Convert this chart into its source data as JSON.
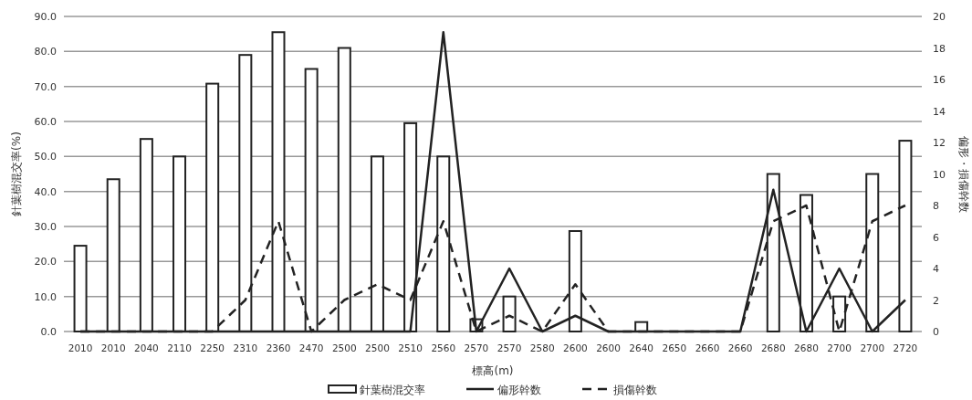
{
  "chart_data": {
    "type": "bar",
    "xlabel": "標高(m)",
    "ylabel": "針葉樹混交率(%)",
    "y2label": "偏形・損傷幹数",
    "categories": [
      "2010",
      "2010",
      "2040",
      "2110",
      "2250",
      "2310",
      "2360",
      "2470",
      "2500",
      "2500",
      "2510",
      "2560",
      "2570",
      "2570",
      "2580",
      "2600",
      "2600",
      "2640",
      "2650",
      "2660",
      "2660",
      "2680",
      "2680",
      "2700",
      "2700",
      "2720"
    ],
    "series": [
      {
        "name": "針葉樹混交率",
        "color": "#ffffff",
        "values": [
          24.5,
          43.5,
          55,
          50,
          70.8,
          79,
          85.5,
          75,
          81,
          50,
          59.5,
          50,
          3.5,
          10,
          0,
          28.7,
          0,
          2.7,
          0,
          0,
          0,
          45,
          39,
          10,
          45,
          54.5
        ]
      },
      {
        "name": "偏形幹数",
        "type": "line",
        "axis": "y2",
        "color": "#222222",
        "line_style": "solid",
        "values": [
          0,
          0,
          0,
          0,
          0,
          0,
          0,
          0,
          0,
          0,
          0,
          19,
          0,
          4,
          0,
          1,
          0,
          0,
          0,
          0,
          0,
          9,
          0,
          4,
          0,
          2
        ]
      },
      {
        "name": "損傷幹数",
        "type": "line",
        "axis": "y2",
        "color": "#222222",
        "line_style": "dashed",
        "values": [
          0,
          0,
          0,
          0,
          0,
          2,
          7,
          0,
          2,
          3,
          2,
          7,
          0,
          1,
          0,
          3,
          0,
          0,
          0,
          0,
          0,
          7,
          8,
          0,
          7,
          8
        ]
      }
    ],
    "ylim": [
      0,
      90
    ],
    "yticks": [
      {
        "value": 0,
        "label": "0.0"
      },
      {
        "value": 10,
        "label": "10.0"
      },
      {
        "value": 20,
        "label": "20.0"
      },
      {
        "value": 30,
        "label": "30.0"
      },
      {
        "value": 40,
        "label": "40.0"
      },
      {
        "value": 50,
        "label": "50.0"
      },
      {
        "value": 60,
        "label": "60.0"
      },
      {
        "value": 70,
        "label": "70.0"
      },
      {
        "value": 80,
        "label": "80.0"
      },
      {
        "value": 90,
        "label": "90.0"
      }
    ],
    "y2lim": [
      0,
      20
    ],
    "y2ticks": [
      0,
      2,
      4,
      6,
      8,
      10,
      12,
      14,
      16,
      18,
      20
    ],
    "grid": "y",
    "legend": "bottom"
  }
}
